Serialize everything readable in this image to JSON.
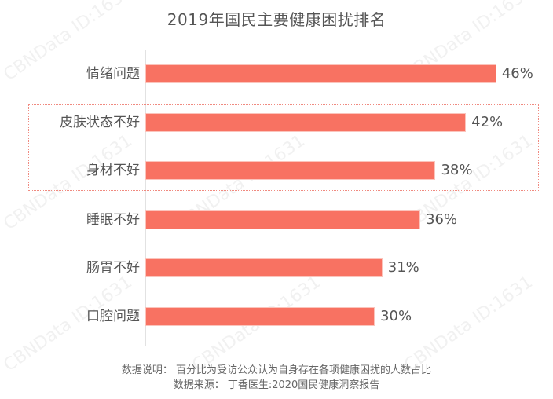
{
  "chart_data": {
    "type": "bar",
    "orientation": "horizontal",
    "title": "2019年国民主要健康困扰排名",
    "categories": [
      "情绪问题",
      "皮肤状态不好",
      "身材不好",
      "睡眠不好",
      "肠胃不好",
      "口腔问题"
    ],
    "values": [
      46,
      42,
      38,
      36,
      31,
      30
    ],
    "value_labels": [
      "46%",
      "42%",
      "38%",
      "36%",
      "31%",
      "30%"
    ],
    "unit": "%",
    "xlabel": "",
    "ylabel": "",
    "grid": false,
    "legend": null,
    "bar_color": "#f87262",
    "highlighted_categories": [
      "皮肤状态不好",
      "身材不好"
    ],
    "highlight_color": "#f08a80"
  },
  "title": "2019年国民主要健康困扰排名",
  "notes": {
    "description": "数据说明：  百分比为受访公众认为自身存在各项健康困扰的人数占比",
    "source": "数据来源：  丁香医生:2020国民健康洞察报告"
  },
  "watermark": "CBNData ID:1631"
}
